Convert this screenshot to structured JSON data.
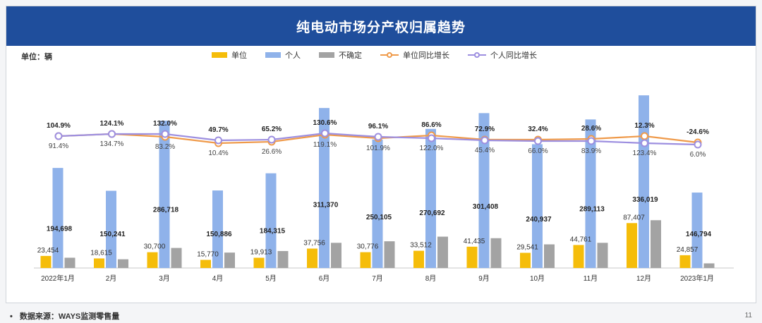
{
  "footer": {
    "bullet": "•",
    "source": "数据来源：WAYS监测零售量",
    "page": "11"
  },
  "chart_data": {
    "type": "bar",
    "title": "纯电动市场分产权归属趋势",
    "unit_label": "单位：辆",
    "categories": [
      "2022年1月",
      "2月",
      "3月",
      "4月",
      "5月",
      "6月",
      "7月",
      "8月",
      "9月",
      "10月",
      "11月",
      "12月",
      "2023年1月"
    ],
    "series": [
      {
        "name": "单位",
        "type": "bar",
        "color": "#f5bd0a",
        "values": [
          23454,
          18615,
          30700,
          15770,
          19913,
          37756,
          30776,
          33512,
          41435,
          29541,
          44761,
          87407,
          24857
        ],
        "labels": [
          "23,454",
          "18,615",
          "30,700",
          "15,770",
          "19,913",
          "37,756",
          "30,776",
          "33,512",
          "41,435",
          "29,541",
          "44,761",
          "87,407",
          "24,857"
        ]
      },
      {
        "name": "个人",
        "type": "bar",
        "color": "#8fb2ea",
        "values": [
          194698,
          150241,
          286718,
          150886,
          184315,
          311370,
          250105,
          270692,
          301408,
          240937,
          289113,
          336019,
          146794
        ],
        "labels": [
          "194,698",
          "150,241",
          "286,718",
          "150,886",
          "184,315",
          "311,370",
          "250,105",
          "270,692",
          "301,408",
          "240,937",
          "289,113",
          "336,019",
          "146,794"
        ]
      },
      {
        "name": "不确定",
        "type": "bar",
        "color": "#a3a3a3",
        "values": [
          20000,
          17000,
          39000,
          30000,
          33000,
          49000,
          52000,
          61000,
          58000,
          46000,
          49000,
          93000,
          9000
        ]
      },
      {
        "name": "单位同比增长",
        "type": "line",
        "color": "#ef9a4a",
        "unit": "%",
        "values": [
          91.4,
          134.7,
          83.2,
          10.4,
          26.6,
          119.1,
          101.9,
          122.0,
          45.4,
          66.0,
          83.9,
          123.4,
          6.0
        ],
        "labels": [
          "91.4%",
          "134.7%",
          "83.2%",
          "10.4%",
          "26.6%",
          "119.1%",
          "101.9%",
          "122.0%",
          "45.4%",
          "66.0%",
          "83.9%",
          "123.4%",
          "6.0%"
        ]
      },
      {
        "name": "个人同比增长",
        "type": "line",
        "color": "#9d8fe0",
        "unit": "%",
        "values": [
          104.9,
          124.1,
          132.0,
          49.7,
          65.2,
          130.6,
          96.1,
          86.6,
          72.9,
          32.4,
          28.6,
          12.3,
          -24.6
        ],
        "labels": [
          "104.9%",
          "124.1%",
          "132.0%",
          "49.7%",
          "65.2%",
          "130.6%",
          "96.1%",
          "86.6%",
          "72.9%",
          "32.4%",
          "28.6%",
          "12.3%",
          "-24.6%"
        ]
      }
    ],
    "ylim": [
      0,
      350000
    ],
    "line_ylim": [
      -1000,
      1000
    ]
  }
}
